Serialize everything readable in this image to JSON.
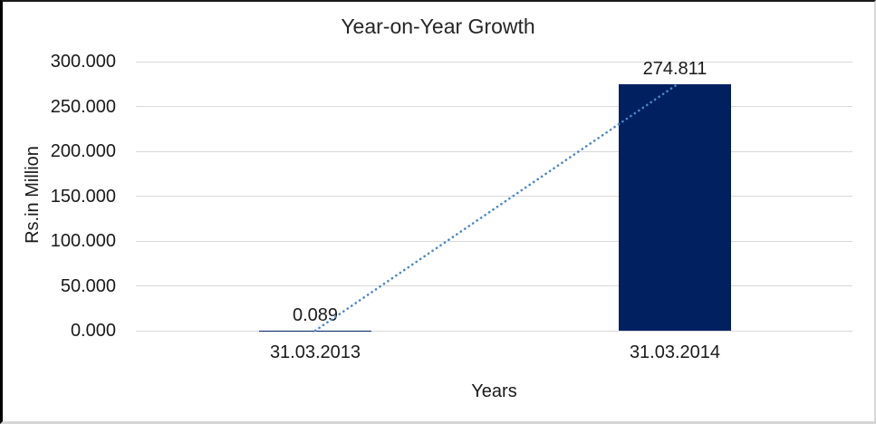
{
  "chart_data": {
    "type": "bar",
    "title": "Year-on-Year Growth",
    "categories": [
      "31.03.2013",
      "31.03.2014"
    ],
    "values": [
      0.089,
      274.811
    ],
    "data_labels": [
      "0.089",
      "274.811"
    ],
    "xlabel": "Years",
    "ylabel": "Rs.in Million",
    "ylim": [
      0,
      300
    ],
    "ytick_interval": 50,
    "ytick_labels": [
      "300.000",
      "250.000",
      "200.000",
      "150.000",
      "100.000",
      "50.000",
      "0.000"
    ],
    "grid": true,
    "legend": "none",
    "bar_color": "#002060",
    "gridline_color": "#d9d9d9",
    "text_color": "#1a1a1a",
    "trendline": {
      "type": "linear",
      "style": "dotted",
      "color": "#4a86c8"
    }
  }
}
